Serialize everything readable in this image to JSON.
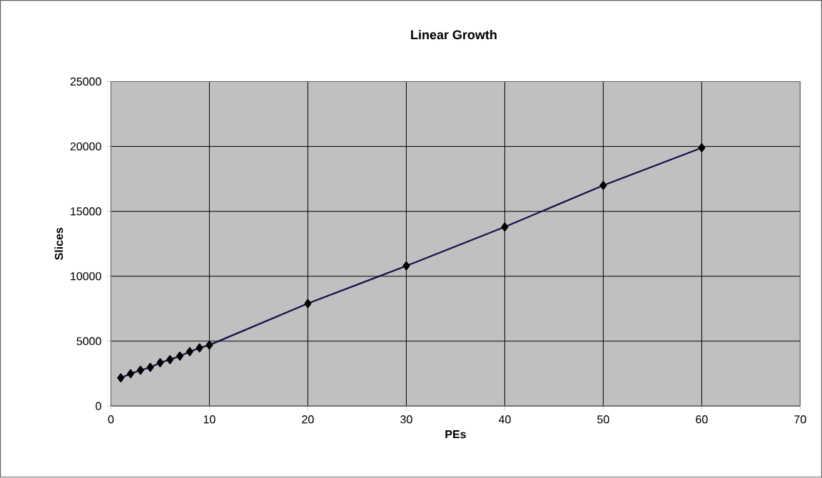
{
  "chart_data": {
    "type": "line",
    "title": "Linear Growth",
    "xlabel": "PEs",
    "ylabel": "Slices",
    "x": [
      1,
      2,
      3,
      4,
      5,
      6,
      7,
      8,
      9,
      10,
      20,
      30,
      40,
      50,
      60
    ],
    "series": [
      {
        "color": "#10104a",
        "values": [
          2170,
          2490,
          2760,
          2980,
          3340,
          3580,
          3850,
          4190,
          4480,
          4700,
          7900,
          10800,
          13800,
          17000,
          19900
        ]
      }
    ],
    "xlim": [
      0,
      70
    ],
    "xticks": [
      0,
      10,
      20,
      30,
      40,
      50,
      60,
      70
    ],
    "ylim": [
      0,
      25000
    ],
    "yticks": [
      0,
      5000,
      10000,
      15000,
      20000,
      25000
    ],
    "grid": true,
    "marker": "diamond",
    "line_style": "solid"
  }
}
